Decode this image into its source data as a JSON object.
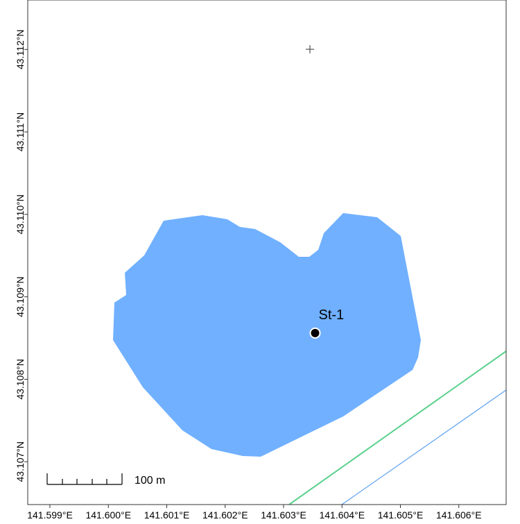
{
  "chart_data": {
    "type": "map",
    "xlim": [
      141.59862,
      141.60681
    ],
    "ylim": [
      43.10648,
      43.1126
    ],
    "xticks": [
      {
        "value": 141.599,
        "label": "141.599°E"
      },
      {
        "value": 141.6,
        "label": "141.600°E"
      },
      {
        "value": 141.601,
        "label": "141.601°E"
      },
      {
        "value": 141.602,
        "label": "141.602°E"
      },
      {
        "value": 141.603,
        "label": "141.603°E"
      },
      {
        "value": 141.604,
        "label": "141.604°E"
      },
      {
        "value": 141.605,
        "label": "141.605°E"
      },
      {
        "value": 141.606,
        "label": "141.606°E"
      }
    ],
    "yticks": [
      {
        "value": 43.107,
        "label": "43.107°N"
      },
      {
        "value": 43.108,
        "label": "43.108°N"
      },
      {
        "value": 43.109,
        "label": "43.109°N"
      },
      {
        "value": 43.11,
        "label": "43.110°N"
      },
      {
        "value": 43.111,
        "label": "43.111°N"
      },
      {
        "value": 43.112,
        "label": "43.112°N"
      }
    ],
    "stations": [
      {
        "name": "St-1",
        "lon": 141.60354,
        "lat": 43.10856
      }
    ],
    "scale_label": "100 m"
  }
}
